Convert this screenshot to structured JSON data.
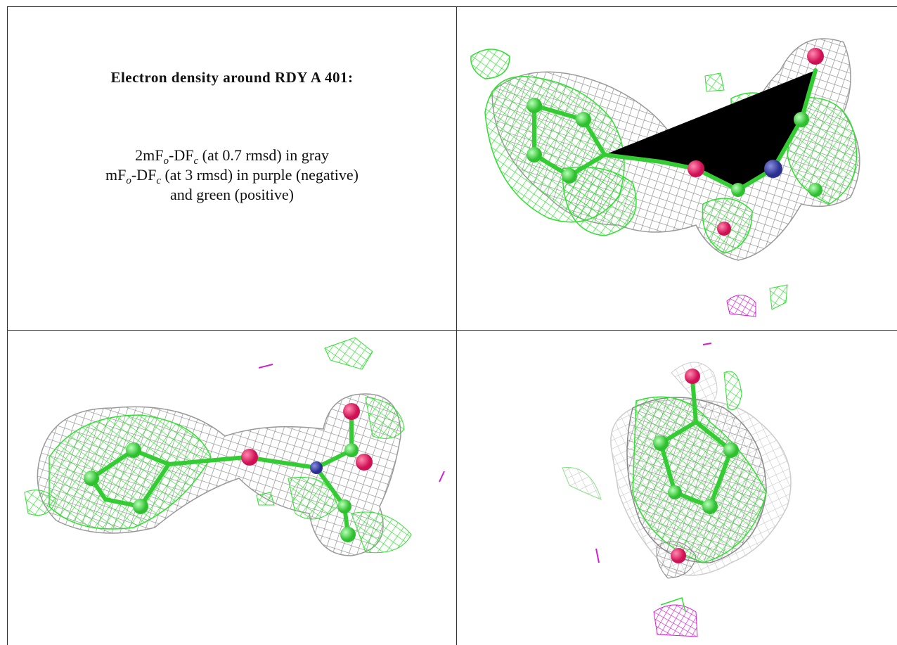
{
  "caption": {
    "title": "Electron density around RDY A 401:",
    "lines": [
      [
        "2mF",
        "o",
        "-DF",
        "c",
        " (at 0.7 rmsd) in gray"
      ],
      [
        "mF",
        "o",
        "-DF",
        "c",
        " (at 3 rmsd) in purple (negative)"
      ],
      [
        "and green (positive)"
      ]
    ]
  }
}
